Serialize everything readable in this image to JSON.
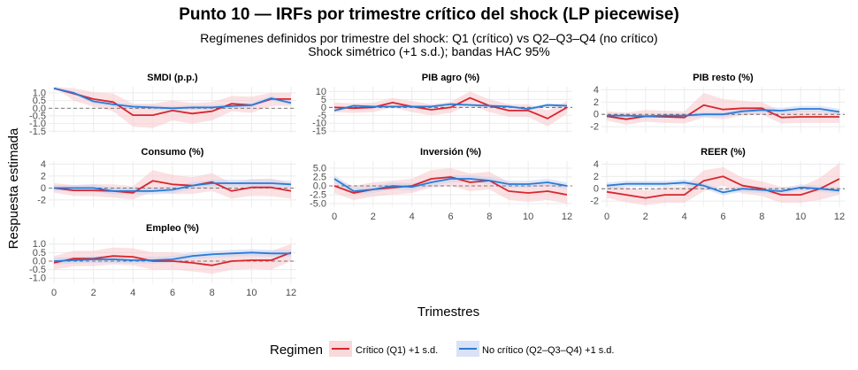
{
  "title": "Punto 10 — IRFs por trimestre crítico del shock (LP piecewise)",
  "subtitle_1": "Regímenes definidos por trimestre del shock: Q1 (crítico) vs Q2–Q3–Q4 (no crítico)",
  "subtitle_2": "Shock simétrico (+1 s.d.); bandas HAC 95%",
  "xlabel": "Trimestres",
  "ylabel": "Respuesta estimada",
  "legend_title": "Regimen",
  "colors": {
    "red": "#d7262e",
    "blue": "#2a7bd6",
    "red_band": "#f7c9cc",
    "blue_band": "#c9d6f3",
    "grid": "#ebebeb",
    "zero": "#555555"
  },
  "chart_data": {
    "type": "line",
    "x": [
      0,
      1,
      2,
      3,
      4,
      5,
      6,
      7,
      8,
      9,
      10,
      11,
      12
    ],
    "x_ticks": [
      0,
      2,
      4,
      6,
      8,
      10,
      12
    ],
    "grid": true,
    "legend_position": "bottom",
    "series_names": [
      "Crítico (Q1)  +1 s.d.",
      "No crítico (Q2–Q3–Q4)  +1 s.d."
    ],
    "panels": [
      {
        "title": "SMDI (p.p.)",
        "ylim": [
          -1.6,
          1.4
        ],
        "y_ticks": [
          1.0,
          0.5,
          0.0,
          -0.5,
          -1.0,
          -1.5
        ],
        "y_tick_labels": [
          "1.0",
          "0.5",
          "0.0",
          "-0.5",
          "-1.0",
          "-1.5"
        ],
        "critico": [
          1.3,
          0.95,
          0.6,
          0.4,
          -0.45,
          -0.45,
          -0.15,
          -0.35,
          -0.2,
          0.3,
          0.2,
          0.6,
          0.6
        ],
        "critico_band": [
          [
            1.4,
            1.4
          ],
          [
            1.3,
            0.5
          ],
          [
            1.05,
            0.1
          ],
          [
            0.95,
            -0.2
          ],
          [
            0.3,
            -1.2
          ],
          [
            0.3,
            -1.3
          ],
          [
            0.5,
            -0.8
          ],
          [
            0.35,
            -1.0
          ],
          [
            0.4,
            -0.8
          ],
          [
            0.8,
            -0.2
          ],
          [
            0.75,
            -0.3
          ],
          [
            1.0,
            0.15
          ],
          [
            1.0,
            0.15
          ]
        ],
        "nocritico": [
          1.3,
          1.0,
          0.45,
          0.25,
          0.1,
          0.05,
          0.0,
          0.05,
          0.05,
          0.15,
          0.2,
          0.65,
          0.35
        ],
        "nocritico_band": [
          [
            1.35,
            1.2
          ],
          [
            1.1,
            0.9
          ],
          [
            0.6,
            0.3
          ],
          [
            0.4,
            0.1
          ],
          [
            0.25,
            -0.05
          ],
          [
            0.2,
            -0.1
          ],
          [
            0.15,
            -0.15
          ],
          [
            0.2,
            -0.1
          ],
          [
            0.2,
            -0.1
          ],
          [
            0.3,
            0.0
          ],
          [
            0.35,
            0.05
          ],
          [
            0.8,
            0.5
          ],
          [
            0.5,
            0.2
          ]
        ]
      },
      {
        "title": "PIB agro (%)",
        "ylim": [
          -16,
          13
        ],
        "y_ticks": [
          10,
          5,
          0,
          -5,
          -10,
          -15
        ],
        "y_tick_labels": [
          "10",
          "5",
          "0",
          "-5",
          "-10",
          "-15"
        ],
        "critico": [
          0,
          -0.5,
          0,
          3,
          0.5,
          -1.5,
          0,
          6,
          1,
          -2,
          -2,
          -7,
          0
        ],
        "critico_band": [
          [
            3,
            -3
          ],
          [
            2.5,
            -3.5
          ],
          [
            3,
            -3
          ],
          [
            6,
            0
          ],
          [
            4,
            -3
          ],
          [
            2,
            -5
          ],
          [
            3.5,
            -3.5
          ],
          [
            10,
            2
          ],
          [
            5,
            -3
          ],
          [
            2,
            -6
          ],
          [
            2,
            -6
          ],
          [
            -2,
            -12
          ],
          [
            4,
            -4
          ]
        ],
        "nocritico": [
          -2,
          1,
          0.5,
          0.5,
          0.5,
          0.5,
          2,
          1.5,
          1,
          0.5,
          -1,
          1.5,
          1
        ],
        "nocritico_band": [
          [
            -1,
            -3
          ],
          [
            2,
            0
          ],
          [
            1.5,
            -0.5
          ],
          [
            1.5,
            -0.5
          ],
          [
            1.5,
            -0.5
          ],
          [
            1.5,
            -0.5
          ],
          [
            3,
            1
          ],
          [
            2.5,
            0.5
          ],
          [
            2,
            0
          ],
          [
            1.5,
            -0.5
          ],
          [
            0,
            -2
          ],
          [
            2.5,
            0.5
          ],
          [
            2,
            0
          ]
        ]
      },
      {
        "title": "PIB resto (%)",
        "ylim": [
          -3,
          4.5
        ],
        "y_ticks": [
          4,
          2,
          0,
          -2
        ],
        "y_tick_labels": [
          "4",
          "2",
          "0",
          "-2"
        ],
        "critico": [
          -0.3,
          -0.8,
          -0.3,
          -0.4,
          -0.5,
          1.5,
          0.8,
          1.0,
          1.0,
          -0.5,
          -0.4,
          -0.4,
          -0.4
        ],
        "critico_band": [
          [
            0.5,
            -1.0
          ],
          [
            0.3,
            -1.7
          ],
          [
            0.7,
            -1.2
          ],
          [
            0.6,
            -1.4
          ],
          [
            0.5,
            -1.5
          ],
          [
            3.5,
            -0.5
          ],
          [
            2.5,
            -0.8
          ],
          [
            2.2,
            -0.2
          ],
          [
            2.0,
            0.0
          ],
          [
            0.5,
            -1.5
          ],
          [
            0.6,
            -1.4
          ],
          [
            0.6,
            -1.4
          ],
          [
            0.6,
            -1.4
          ]
        ],
        "nocritico": [
          -0.2,
          -0.2,
          -0.3,
          -0.2,
          -0.2,
          0.0,
          0.0,
          0.5,
          0.7,
          0.6,
          0.9,
          0.9,
          0.4
        ],
        "nocritico_band": [
          [
            0.1,
            -0.5
          ],
          [
            0.1,
            -0.5
          ],
          [
            0.0,
            -0.6
          ],
          [
            0.1,
            -0.5
          ],
          [
            0.1,
            -0.5
          ],
          [
            0.4,
            -0.4
          ],
          [
            0.4,
            -0.4
          ],
          [
            1.0,
            0.0
          ],
          [
            1.2,
            0.2
          ],
          [
            1.1,
            0.1
          ],
          [
            1.4,
            0.4
          ],
          [
            1.4,
            0.4
          ],
          [
            0.9,
            -0.1
          ]
        ]
      },
      {
        "title": "Consumo (%)",
        "ylim": [
          -3.2,
          4.5
        ],
        "y_ticks": [
          4,
          2,
          0,
          -2
        ],
        "y_tick_labels": [
          "4",
          "2",
          "0",
          "-2"
        ],
        "critico": [
          0,
          -0.4,
          -0.4,
          -0.5,
          -0.8,
          1.2,
          0.6,
          0.4,
          1.0,
          -0.5,
          0.1,
          0.1,
          -0.5
        ],
        "critico_band": [
          [
            0.8,
            -0.8
          ],
          [
            0.5,
            -1.3
          ],
          [
            0.6,
            -1.4
          ],
          [
            0.6,
            -1.6
          ],
          [
            0.3,
            -1.9
          ],
          [
            3.0,
            -0.6
          ],
          [
            2.2,
            -1.0
          ],
          [
            1.8,
            -1.0
          ],
          [
            2.5,
            -0.5
          ],
          [
            0.8,
            -1.8
          ],
          [
            1.5,
            -1.3
          ],
          [
            1.6,
            -1.4
          ],
          [
            0.8,
            -1.8
          ]
        ],
        "nocritico": [
          0,
          0,
          0,
          -0.5,
          -0.5,
          -0.5,
          -0.3,
          0.4,
          0.8,
          0.8,
          0.8,
          0.8,
          0.6
        ],
        "nocritico_band": [
          [
            0.5,
            -0.5
          ],
          [
            0.5,
            -0.5
          ],
          [
            0.6,
            -0.6
          ],
          [
            0.1,
            -1.1
          ],
          [
            0.1,
            -1.1
          ],
          [
            0.1,
            -1.1
          ],
          [
            0.3,
            -0.9
          ],
          [
            1.0,
            -0.2
          ],
          [
            1.4,
            0.2
          ],
          [
            1.4,
            0.2
          ],
          [
            1.4,
            0.2
          ],
          [
            1.4,
            0.2
          ],
          [
            1.2,
            0.0
          ]
        ]
      },
      {
        "title": "Inversión (%)",
        "ylim": [
          -6,
          7
        ],
        "y_ticks": [
          5.0,
          2.5,
          0.0,
          -2.5,
          -5.0
        ],
        "y_tick_labels": [
          "5.0",
          "2.5",
          "0.0",
          "-2.5",
          "-5.0"
        ],
        "critico": [
          0,
          -2,
          -1,
          -0.5,
          0,
          2,
          2.5,
          1,
          1.5,
          -1.5,
          -2,
          -1.5,
          -2.5
        ],
        "critico_band": [
          [
            2,
            -2
          ],
          [
            0,
            -4
          ],
          [
            1,
            -3
          ],
          [
            1.5,
            -2.5
          ],
          [
            2,
            -2
          ],
          [
            4.5,
            -0.5
          ],
          [
            5,
            0
          ],
          [
            3.5,
            -1.5
          ],
          [
            4,
            -1
          ],
          [
            1,
            -4
          ],
          [
            0.5,
            -4.5
          ],
          [
            1,
            -4
          ],
          [
            0,
            -5
          ]
        ],
        "nocritico": [
          2,
          -1.5,
          -1,
          0,
          -0.3,
          1,
          2,
          2,
          1.5,
          0.5,
          0.5,
          1,
          0
        ],
        "nocritico_band": [
          [
            3,
            1
          ],
          [
            -0.5,
            -2.5
          ],
          [
            0,
            -2
          ],
          [
            1,
            -1
          ],
          [
            0.7,
            -1.3
          ],
          [
            2,
            0
          ],
          [
            3,
            1
          ],
          [
            3,
            1
          ],
          [
            2.5,
            0.5
          ],
          [
            1.5,
            -0.5
          ],
          [
            1.5,
            -0.5
          ],
          [
            2,
            0
          ],
          [
            1,
            -1
          ]
        ]
      },
      {
        "title": "REER (%)",
        "ylim": [
          -3,
          4.5
        ],
        "y_ticks": [
          4,
          2,
          0,
          -2
        ],
        "y_tick_labels": [
          "4",
          "2",
          "0",
          "-2"
        ],
        "critico": [
          -0.5,
          -1.0,
          -1.5,
          -1.0,
          -1.0,
          1.3,
          2.0,
          0.5,
          0.0,
          -1.0,
          -1.0,
          0.0,
          1.6
        ],
        "critico_band": [
          [
            0.5,
            -1.5
          ],
          [
            0.2,
            -2.2
          ],
          [
            -0.3,
            -2.7
          ],
          [
            0.3,
            -2.3
          ],
          [
            0.3,
            -2.3
          ],
          [
            3.0,
            -0.4
          ],
          [
            3.5,
            0.5
          ],
          [
            1.8,
            -0.8
          ],
          [
            1.2,
            -1.2
          ],
          [
            0.3,
            -2.3
          ],
          [
            0.3,
            -2.3
          ],
          [
            1.8,
            -1.8
          ],
          [
            4.2,
            -1.0
          ]
        ],
        "nocritico": [
          0.5,
          0.8,
          0.8,
          0.8,
          1.0,
          0.5,
          -0.6,
          0.0,
          -0.2,
          -0.4,
          0.2,
          0.0,
          -0.3
        ],
        "nocritico_band": [
          [
            1.0,
            0.0
          ],
          [
            1.3,
            0.3
          ],
          [
            1.3,
            0.3
          ],
          [
            1.3,
            0.3
          ],
          [
            1.5,
            0.5
          ],
          [
            1.0,
            0.0
          ],
          [
            -0.1,
            -1.1
          ],
          [
            0.5,
            -0.5
          ],
          [
            0.3,
            -0.7
          ],
          [
            0.1,
            -0.9
          ],
          [
            0.7,
            -0.3
          ],
          [
            0.5,
            -0.5
          ],
          [
            0.2,
            -0.8
          ]
        ]
      },
      {
        "title": "Empleo (%)",
        "ylim": [
          -1.3,
          1.4
        ],
        "y_ticks": [
          1.0,
          0.5,
          0.0,
          -0.5,
          -1.0
        ],
        "y_tick_labels": [
          "1.0",
          "0.5",
          "0.0",
          "-0.5",
          "-1.0"
        ],
        "critico": [
          -0.1,
          0.15,
          0.15,
          0.3,
          0.25,
          0.0,
          0.0,
          -0.1,
          -0.25,
          0.0,
          0.05,
          0.05,
          0.5
        ],
        "critico_band": [
          [
            0.3,
            -0.5
          ],
          [
            0.6,
            -0.3
          ],
          [
            0.6,
            -0.3
          ],
          [
            0.8,
            -0.2
          ],
          [
            0.75,
            -0.25
          ],
          [
            0.5,
            -0.5
          ],
          [
            0.5,
            -0.5
          ],
          [
            0.4,
            -0.6
          ],
          [
            0.25,
            -0.75
          ],
          [
            0.5,
            -0.5
          ],
          [
            0.55,
            -0.45
          ],
          [
            0.6,
            -0.5
          ],
          [
            1.0,
            0.0
          ]
        ],
        "nocritico": [
          0.0,
          0.05,
          0.1,
          0.1,
          0.05,
          0.05,
          0.1,
          0.3,
          0.4,
          0.45,
          0.5,
          0.45,
          0.45
        ],
        "nocritico_band": [
          [
            0.2,
            -0.2
          ],
          [
            0.25,
            -0.15
          ],
          [
            0.3,
            -0.1
          ],
          [
            0.3,
            -0.1
          ],
          [
            0.25,
            -0.15
          ],
          [
            0.25,
            -0.15
          ],
          [
            0.3,
            -0.1
          ],
          [
            0.5,
            0.1
          ],
          [
            0.6,
            0.2
          ],
          [
            0.65,
            0.25
          ],
          [
            0.7,
            0.3
          ],
          [
            0.65,
            0.25
          ],
          [
            0.65,
            0.25
          ]
        ]
      }
    ]
  }
}
